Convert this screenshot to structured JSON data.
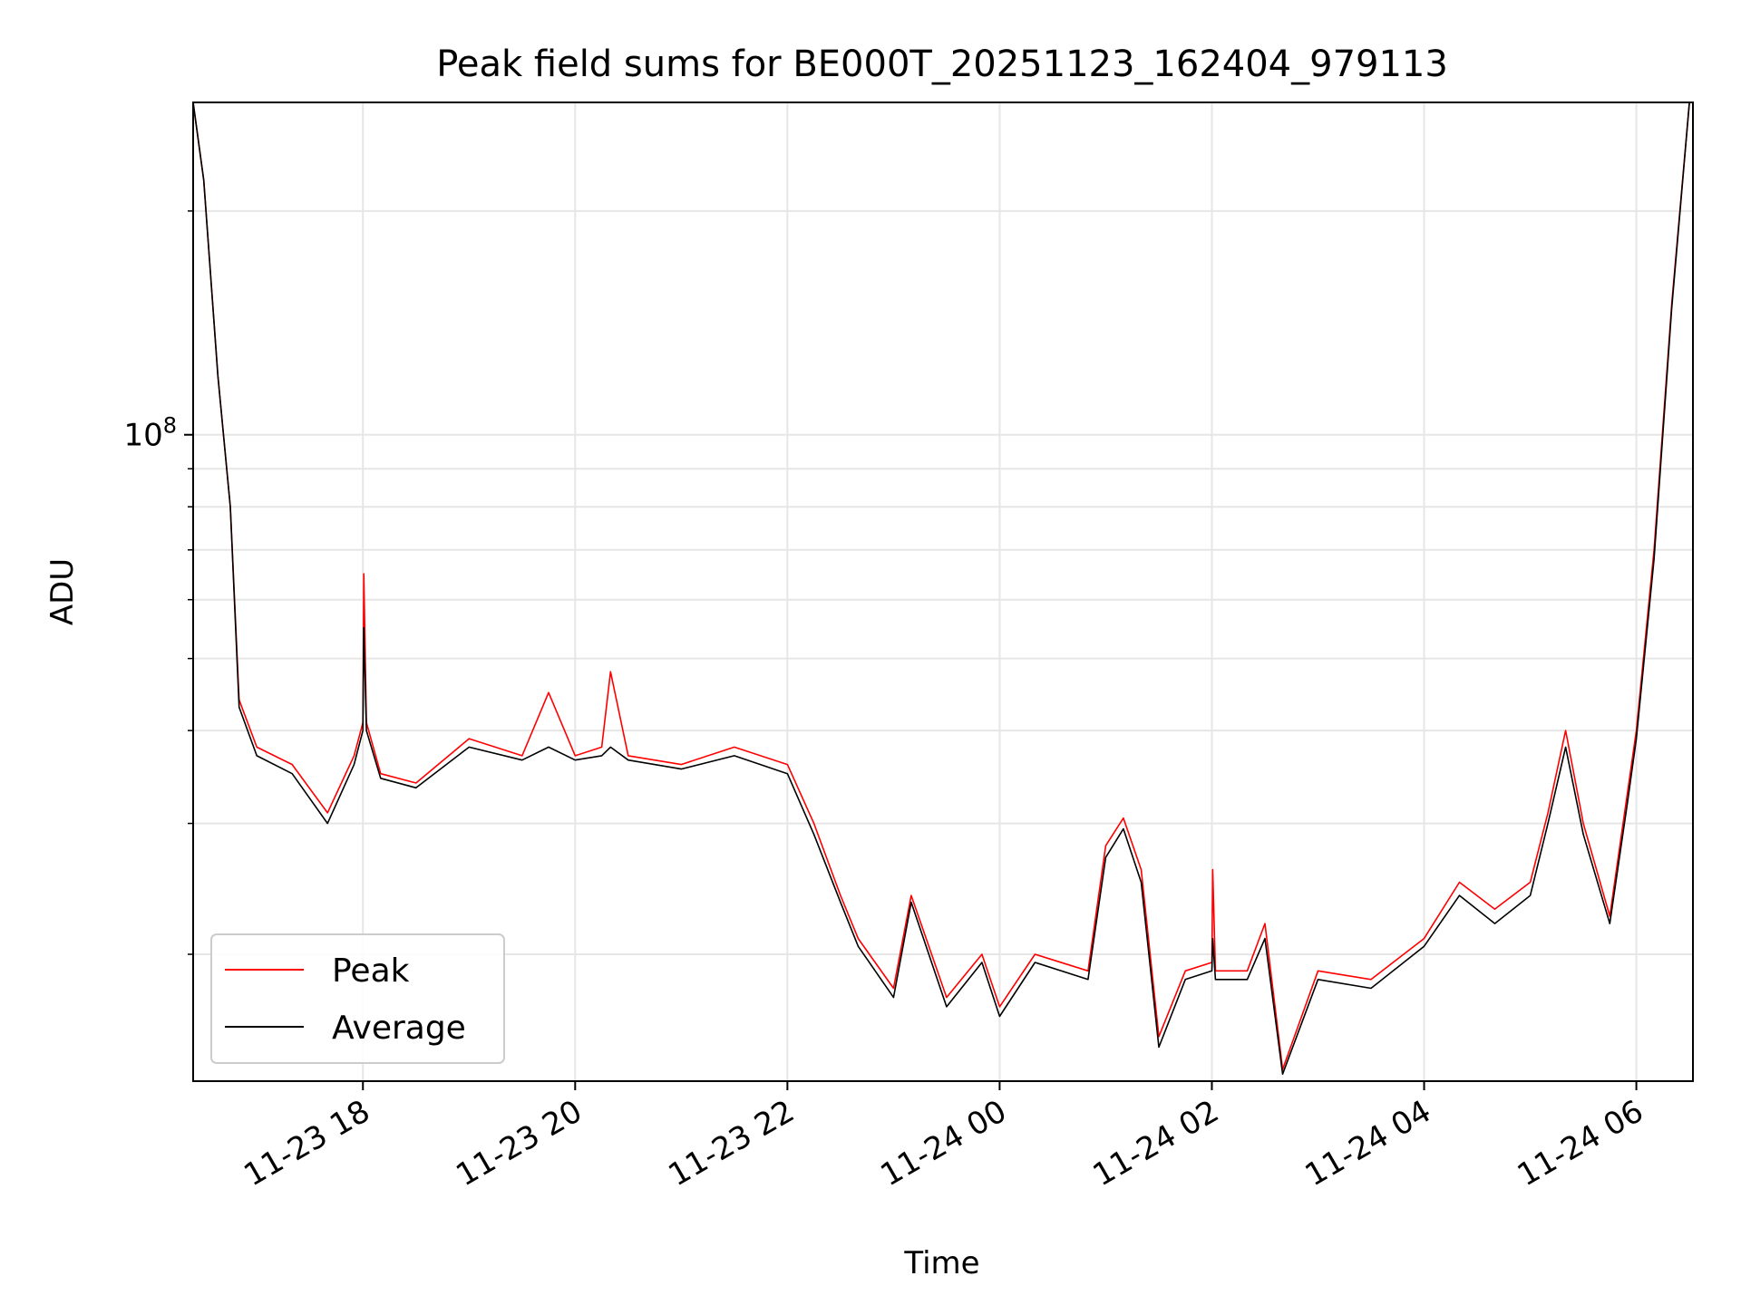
{
  "chart_data": {
    "type": "line",
    "title": "Peak field sums for BE000T_20251123_162404_979113",
    "xlabel": "Time",
    "ylabel": "ADU",
    "yscale": "log",
    "xlim": [
      "2025-11-23 16:24",
      "2025-11-24 06:32"
    ],
    "ylim": [
      13500000,
      280000000
    ],
    "x_ticks": [
      "11-23 18",
      "11-23 20",
      "11-23 22",
      "11-24 00",
      "11-24 02",
      "11-24 04",
      "11-24 06"
    ],
    "y_major_ticks": [
      {
        "value": 100000000,
        "label": "10^8"
      }
    ],
    "y_minor_ticks": [
      20000000,
      30000000,
      40000000,
      50000000,
      60000000,
      70000000,
      80000000,
      90000000,
      200000000
    ],
    "grid": true,
    "legend_position": "lower-left",
    "series": [
      {
        "name": "Peak",
        "color": "#ff0000",
        "points": [
          [
            "2025-11-23 16:24",
            280000000
          ],
          [
            "2025-11-23 16:30",
            220000000
          ],
          [
            "2025-11-23 16:38",
            120000000
          ],
          [
            "2025-11-23 16:45",
            80000000
          ],
          [
            "2025-11-23 16:50",
            44000000
          ],
          [
            "2025-11-23 17:00",
            38000000
          ],
          [
            "2025-11-23 17:20",
            36000000
          ],
          [
            "2025-11-23 17:40",
            31000000
          ],
          [
            "2025-11-23 17:55",
            37000000
          ],
          [
            "2025-11-23 18:00",
            41000000
          ],
          [
            "2025-11-23 18:00:30",
            65000000
          ],
          [
            "2025-11-23 18:02",
            41000000
          ],
          [
            "2025-11-23 18:10",
            35000000
          ],
          [
            "2025-11-23 18:30",
            34000000
          ],
          [
            "2025-11-23 19:00",
            39000000
          ],
          [
            "2025-11-23 19:30",
            37000000
          ],
          [
            "2025-11-23 19:45",
            45000000
          ],
          [
            "2025-11-23 20:00",
            37000000
          ],
          [
            "2025-11-23 20:15",
            38000000
          ],
          [
            "2025-11-23 20:20",
            48000000
          ],
          [
            "2025-11-23 20:30",
            37000000
          ],
          [
            "2025-11-23 21:00",
            36000000
          ],
          [
            "2025-11-23 21:30",
            38000000
          ],
          [
            "2025-11-23 22:00",
            36000000
          ],
          [
            "2025-11-23 22:15",
            30000000
          ],
          [
            "2025-11-23 22:30",
            24000000
          ],
          [
            "2025-11-23 22:40",
            21000000
          ],
          [
            "2025-11-23 23:00",
            18000000
          ],
          [
            "2025-11-23 23:10",
            24000000
          ],
          [
            "2025-11-23 23:30",
            17500000
          ],
          [
            "2025-11-23 23:50",
            20000000
          ],
          [
            "2025-11-24 00:00",
            17000000
          ],
          [
            "2025-11-24 00:20",
            20000000
          ],
          [
            "2025-11-24 00:50",
            19000000
          ],
          [
            "2025-11-24 01:00",
            28000000
          ],
          [
            "2025-11-24 01:10",
            30500000
          ],
          [
            "2025-11-24 01:20",
            26000000
          ],
          [
            "2025-11-24 01:30",
            15500000
          ],
          [
            "2025-11-24 01:45",
            19000000
          ],
          [
            "2025-11-24 02:00",
            19500000
          ],
          [
            "2025-11-24 02:00:30",
            26000000
          ],
          [
            "2025-11-24 02:02",
            19000000
          ],
          [
            "2025-11-24 02:20",
            19000000
          ],
          [
            "2025-11-24 02:30",
            22000000
          ],
          [
            "2025-11-24 02:40",
            14000000
          ],
          [
            "2025-11-24 03:00",
            19000000
          ],
          [
            "2025-11-24 03:30",
            18500000
          ],
          [
            "2025-11-24 04:00",
            21000000
          ],
          [
            "2025-11-24 04:20",
            25000000
          ],
          [
            "2025-11-24 04:40",
            23000000
          ],
          [
            "2025-11-24 05:00",
            25000000
          ],
          [
            "2025-11-24 05:10",
            31000000
          ],
          [
            "2025-11-24 05:20",
            40000000
          ],
          [
            "2025-11-24 05:30",
            30000000
          ],
          [
            "2025-11-24 05:45",
            22500000
          ],
          [
            "2025-11-24 05:55",
            33000000
          ],
          [
            "2025-11-24 06:00",
            40000000
          ],
          [
            "2025-11-24 06:10",
            70000000
          ],
          [
            "2025-11-24 06:20",
            150000000
          ],
          [
            "2025-11-24 06:30",
            280000000
          ]
        ]
      },
      {
        "name": "Average",
        "color": "#000000",
        "points": [
          [
            "2025-11-23 16:24",
            280000000
          ],
          [
            "2025-11-23 16:30",
            220000000
          ],
          [
            "2025-11-23 16:38",
            120000000
          ],
          [
            "2025-11-23 16:45",
            80000000
          ],
          [
            "2025-11-23 16:50",
            43000000
          ],
          [
            "2025-11-23 17:00",
            37000000
          ],
          [
            "2025-11-23 17:20",
            35000000
          ],
          [
            "2025-11-23 17:40",
            30000000
          ],
          [
            "2025-11-23 17:55",
            36000000
          ],
          [
            "2025-11-23 18:00",
            40000000
          ],
          [
            "2025-11-23 18:00:30",
            55000000
          ],
          [
            "2025-11-23 18:02",
            40000000
          ],
          [
            "2025-11-23 18:10",
            34500000
          ],
          [
            "2025-11-23 18:30",
            33500000
          ],
          [
            "2025-11-23 19:00",
            38000000
          ],
          [
            "2025-11-23 19:30",
            36500000
          ],
          [
            "2025-11-23 19:45",
            38000000
          ],
          [
            "2025-11-23 20:00",
            36500000
          ],
          [
            "2025-11-23 20:15",
            37000000
          ],
          [
            "2025-11-23 20:20",
            38000000
          ],
          [
            "2025-11-23 20:30",
            36500000
          ],
          [
            "2025-11-23 21:00",
            35500000
          ],
          [
            "2025-11-23 21:30",
            37000000
          ],
          [
            "2025-11-23 22:00",
            35000000
          ],
          [
            "2025-11-23 22:15",
            29000000
          ],
          [
            "2025-11-23 22:30",
            23500000
          ],
          [
            "2025-11-23 22:40",
            20500000
          ],
          [
            "2025-11-23 23:00",
            17500000
          ],
          [
            "2025-11-23 23:10",
            23500000
          ],
          [
            "2025-11-23 23:30",
            17000000
          ],
          [
            "2025-11-23 23:50",
            19500000
          ],
          [
            "2025-11-24 00:00",
            16500000
          ],
          [
            "2025-11-24 00:20",
            19500000
          ],
          [
            "2025-11-24 00:50",
            18500000
          ],
          [
            "2025-11-24 01:00",
            27000000
          ],
          [
            "2025-11-24 01:10",
            29500000
          ],
          [
            "2025-11-24 01:20",
            25000000
          ],
          [
            "2025-11-24 01:30",
            15000000
          ],
          [
            "2025-11-24 01:45",
            18500000
          ],
          [
            "2025-11-24 02:00",
            19000000
          ],
          [
            "2025-11-24 02:00:30",
            21000000
          ],
          [
            "2025-11-24 02:02",
            18500000
          ],
          [
            "2025-11-24 02:20",
            18500000
          ],
          [
            "2025-11-24 02:30",
            21000000
          ],
          [
            "2025-11-24 02:40",
            13800000
          ],
          [
            "2025-11-24 03:00",
            18500000
          ],
          [
            "2025-11-24 03:30",
            18000000
          ],
          [
            "2025-11-24 04:00",
            20500000
          ],
          [
            "2025-11-24 04:20",
            24000000
          ],
          [
            "2025-11-24 04:40",
            22000000
          ],
          [
            "2025-11-24 05:00",
            24000000
          ],
          [
            "2025-11-24 05:10",
            30000000
          ],
          [
            "2025-11-24 05:20",
            38000000
          ],
          [
            "2025-11-24 05:30",
            29000000
          ],
          [
            "2025-11-24 05:45",
            22000000
          ],
          [
            "2025-11-24 05:55",
            32000000
          ],
          [
            "2025-11-24 06:00",
            39000000
          ],
          [
            "2025-11-24 06:10",
            68000000
          ],
          [
            "2025-11-24 06:20",
            148000000
          ],
          [
            "2025-11-24 06:30",
            280000000
          ]
        ]
      }
    ]
  }
}
